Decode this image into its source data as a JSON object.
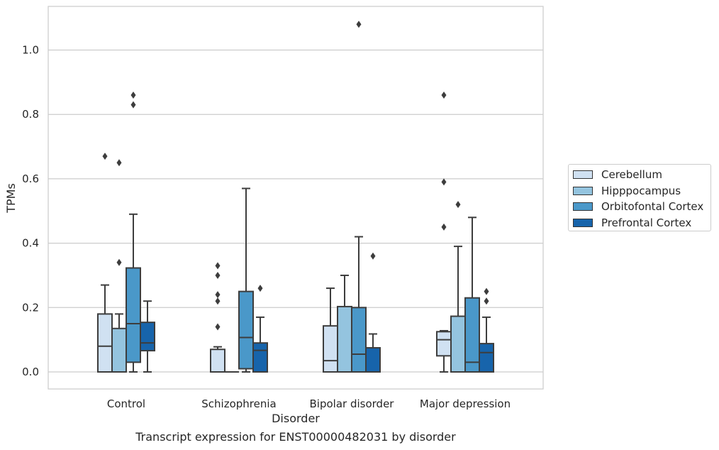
{
  "chart_data": {
    "type": "box",
    "caption": "Transcript expression for ENST00000482031 by disorder",
    "xlabel": "Disorder",
    "ylabel": "TPMs",
    "ylim": [
      -0.05,
      1.135
    ],
    "yticks": [
      "0.0",
      "0.2",
      "0.4",
      "0.6",
      "0.8",
      "1.0"
    ],
    "grid": "horizontal",
    "legend_position": "right",
    "categories": [
      "Control",
      "Schizophrenia",
      "Bipolar disorder",
      "Major depression"
    ],
    "series": [
      {
        "name": "Cerebellum",
        "color": "#d0e1f2",
        "boxes": [
          {
            "whisker_low": 0,
            "q1": 0,
            "median": 0.08,
            "q3": 0.18,
            "whisker_high": 0.27,
            "outliers": [
              0.67
            ]
          },
          {
            "whisker_low": 0,
            "q1": 0,
            "median": 0,
            "q3": 0.07,
            "whisker_high": 0.078,
            "outliers": [
              0.14,
              0.22,
              0.24,
              0.3,
              0.33
            ]
          },
          {
            "whisker_low": 0,
            "q1": 0,
            "median": 0.035,
            "q3": 0.143,
            "whisker_high": 0.26,
            "outliers": []
          },
          {
            "whisker_low": 0,
            "q1": 0.05,
            "median": 0.1,
            "q3": 0.125,
            "whisker_high": 0.128,
            "outliers": [
              0.45,
              0.59,
              0.86
            ]
          }
        ]
      },
      {
        "name": "Hipppocampus",
        "color": "#94c4df",
        "boxes": [
          {
            "whisker_low": 0,
            "q1": 0,
            "median": 0,
            "q3": 0.135,
            "whisker_high": 0.18,
            "outliers": [
              0.34,
              0.65
            ]
          },
          {
            "whisker_low": 0,
            "q1": 0,
            "median": 0,
            "q3": 0,
            "whisker_high": 0,
            "outliers": []
          },
          {
            "whisker_low": 0,
            "q1": 0,
            "median": 0,
            "q3": 0.203,
            "whisker_high": 0.3,
            "outliers": []
          },
          {
            "whisker_low": 0,
            "q1": 0,
            "median": 0,
            "q3": 0.173,
            "whisker_high": 0.39,
            "outliers": [
              0.52
            ]
          }
        ]
      },
      {
        "name": "Orbitofontal Cortex",
        "color": "#4a98c9",
        "boxes": [
          {
            "whisker_low": 0,
            "q1": 0.03,
            "median": 0.15,
            "q3": 0.323,
            "whisker_high": 0.49,
            "outliers": [
              0.83,
              0.86
            ]
          },
          {
            "whisker_low": 0,
            "q1": 0.01,
            "median": 0.107,
            "q3": 0.25,
            "whisker_high": 0.57,
            "outliers": []
          },
          {
            "whisker_low": 0,
            "q1": 0,
            "median": 0.055,
            "q3": 0.2,
            "whisker_high": 0.42,
            "outliers": [
              1.08
            ]
          },
          {
            "whisker_low": 0,
            "q1": 0,
            "median": 0.03,
            "q3": 0.23,
            "whisker_high": 0.48,
            "outliers": []
          }
        ]
      },
      {
        "name": "Prefrontal Cortex",
        "color": "#1764ab",
        "boxes": [
          {
            "whisker_low": 0,
            "q1": 0.066,
            "median": 0.09,
            "q3": 0.154,
            "whisker_high": 0.22,
            "outliers": []
          },
          {
            "whisker_low": 0,
            "q1": 0,
            "median": 0.067,
            "q3": 0.09,
            "whisker_high": 0.17,
            "outliers": [
              0.26
            ]
          },
          {
            "whisker_low": 0,
            "q1": 0,
            "median": 0,
            "q3": 0.075,
            "whisker_high": 0.118,
            "outliers": [
              0.36
            ]
          },
          {
            "whisker_low": 0,
            "q1": 0,
            "median": 0.06,
            "q3": 0.088,
            "whisker_high": 0.17,
            "outliers": [
              0.22,
              0.25
            ]
          }
        ]
      }
    ]
  }
}
